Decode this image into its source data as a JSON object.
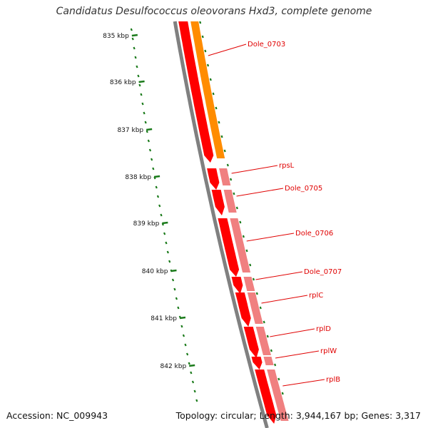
{
  "title": "Candidatus Desulfococcus oleovorans Hxd3, complete genome",
  "footer": {
    "accession": "Accession: NC_009943",
    "summary": "Topology: circular; Length: 3,944,167 bp; Genes: 3,317"
  },
  "scale_labels": [
    "835 kbp",
    "836 kbp",
    "837 kbp",
    "838 kbp",
    "839 kbp",
    "840 kbp",
    "841 kbp",
    "842 kbp"
  ],
  "genes": [
    {
      "label": "Dole_0703",
      "color": "#ff8c00"
    },
    {
      "label": "rpsL",
      "color": "#ff0000"
    },
    {
      "label": "Dole_0705",
      "color": "#ff0000"
    },
    {
      "label": "Dole_0706",
      "color": "#ff0000"
    },
    {
      "label": "Dole_0707",
      "color": "#ff0000"
    },
    {
      "label": "rplC",
      "color": "#ff0000"
    },
    {
      "label": "rplD",
      "color": "#ff0000"
    },
    {
      "label": "rplW",
      "color": "#ff0000"
    },
    {
      "label": "rplB",
      "color": "#ff0000"
    }
  ],
  "colors": {
    "backbone": "#808080",
    "scale_ticks": "#1a7a1a",
    "gene_red": "#ff0000",
    "gene_orange": "#ff8c00",
    "gene_pink": "#f08080",
    "label_red": "#e00000"
  }
}
